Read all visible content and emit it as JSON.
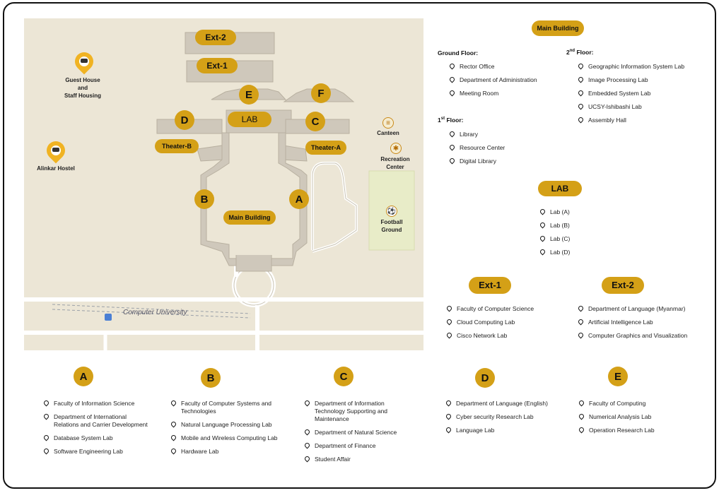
{
  "map": {
    "buildings": {
      "ext2": "Ext-2",
      "ext1": "Ext-1",
      "e": "E",
      "f": "F",
      "lab": "LAB",
      "d": "D",
      "c": "C",
      "theater_b": "Theater-B",
      "theater_a": "Theater-A",
      "b": "B",
      "a": "A",
      "main": "Main Building"
    },
    "places": {
      "guest_house": "Guest House\nand\nStaff Housing",
      "alinkar": "Alinkar Hostel",
      "canteen": "Canteen",
      "recreation": "Recreation\nCenter",
      "football": "Football\nGround",
      "computer_university": "Computer University"
    },
    "colors": {
      "accent": "#d4a017",
      "pin": "#f0b323",
      "ground": "#ece6d6",
      "building": "#cfc8bb",
      "field": "#e8ecc8"
    },
    "icons": [
      "bed-icon",
      "canteen-icon",
      "recreation-icon",
      "football-icon",
      "bus-icon"
    ]
  },
  "main_building": {
    "title": "Main Building",
    "ground_floor_label": "Ground Floor:",
    "ground_floor": [
      "Rector Office",
      "Department of Administration",
      "Meeting Room"
    ],
    "first_floor_num": "1",
    "first_floor_sup": "st",
    "first_floor_rest": " Floor:",
    "first_floor": [
      "Library",
      "Resource Center",
      "Digital Library"
    ],
    "second_floor_num": "2",
    "second_floor_sup": "nd",
    "second_floor_rest": " Floor:",
    "second_floor": [
      "Geographic Information System Lab",
      "Image Processing Lab",
      "Embedded System Lab",
      "UCSY-Ishibashi Lab",
      "Assembly Hall"
    ]
  },
  "lab": {
    "title": "LAB",
    "items": [
      "Lab (A)",
      "Lab (B)",
      "Lab (C)",
      "Lab (D)"
    ]
  },
  "ext1": {
    "title": "Ext-1",
    "items": [
      "Faculty of Computer Science",
      "Cloud Computing Lab",
      "Cisco Network Lab"
    ]
  },
  "ext2": {
    "title": "Ext-2",
    "items": [
      "Department of Language (Myanmar)",
      "Artificial Intelligence Lab",
      "Computer Graphics and Visualization"
    ]
  },
  "blocks": [
    {
      "letter": "A",
      "items": [
        "Faculty of Information Science",
        "Department of International Relations and Carrier Development",
        "Database System Lab",
        "Software Engineering Lab"
      ]
    },
    {
      "letter": "B",
      "items": [
        "Faculty of Computer Systems and Technologies",
        "Natural Language Processing Lab",
        "Mobile and Wireless Computing Lab",
        "Hardware Lab"
      ]
    },
    {
      "letter": "C",
      "items": [
        "Department of Information Technology Supporting and Maintenance",
        "Department of Natural Science",
        "Department of Finance",
        "Student Affair"
      ]
    },
    {
      "letter": "D",
      "items": [
        "Department of Language (English)",
        "Cyber security Research Lab",
        "Language Lab"
      ]
    },
    {
      "letter": "E",
      "items": [
        "Faculty of Computing",
        "Numerical Analysis Lab",
        "Operation Research Lab"
      ]
    }
  ]
}
